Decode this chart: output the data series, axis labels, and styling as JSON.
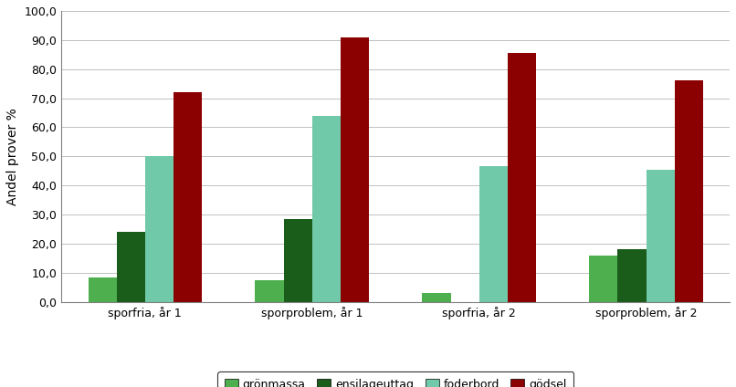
{
  "categories": [
    "sporfria, år 1",
    "sporproblem, år 1",
    "sporfria, år 2",
    "sporproblem, år 2"
  ],
  "series": {
    "grönmassa": [
      8.5,
      7.5,
      3.0,
      16.0
    ],
    "ensilageuttag": [
      24.0,
      28.5,
      0.0,
      18.0
    ],
    "foderbord": [
      50.0,
      64.0,
      46.5,
      45.5
    ],
    "gödsel": [
      72.0,
      91.0,
      85.5,
      76.0
    ]
  },
  "colors": {
    "grönmassa": "#4daf4d",
    "ensilageuttag": "#1a5c1a",
    "foderbord": "#70c9a8",
    "gödsel": "#8b0000"
  },
  "ylabel": "Andel prover %",
  "ylim": [
    0,
    100
  ],
  "yticks": [
    0.0,
    10.0,
    20.0,
    30.0,
    40.0,
    50.0,
    60.0,
    70.0,
    80.0,
    90.0,
    100.0
  ],
  "ytick_labels": [
    "0,0",
    "10,0",
    "20,0",
    "30,0",
    "40,0",
    "50,0",
    "60,0",
    "70,0",
    "80,0",
    "90,0",
    "100,0"
  ],
  "legend_order": [
    "grönmassa",
    "ensilageuttag",
    "foderbord",
    "gödsel"
  ],
  "bar_width": 0.17,
  "figsize": [
    8.06,
    4.24
  ],
  "dpi": 100
}
